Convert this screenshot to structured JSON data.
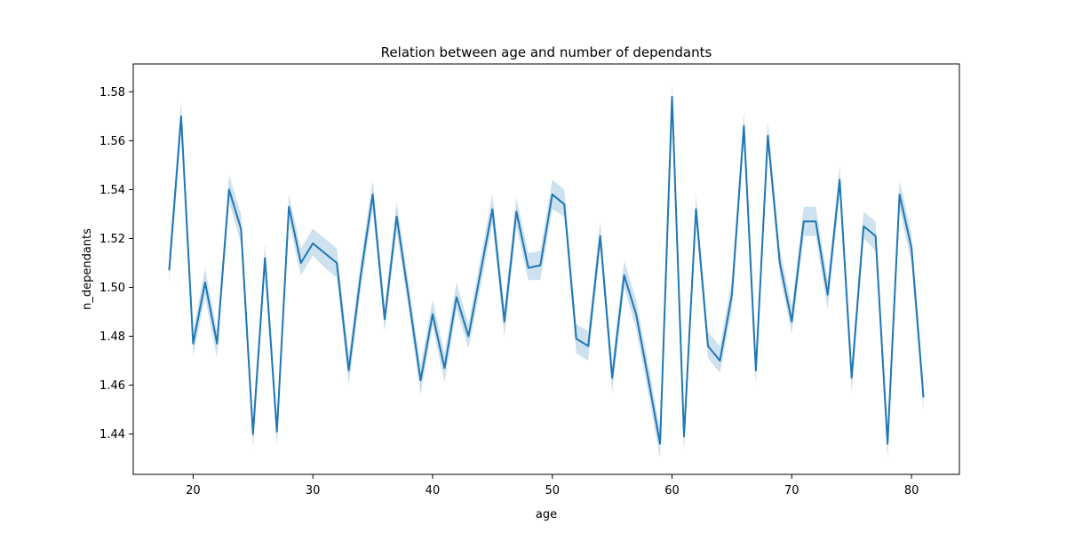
{
  "chart_data": {
    "type": "line",
    "title": "Relation between age and number of dependants",
    "xlabel": "age",
    "ylabel": "n_dependants",
    "xlim": [
      15,
      84
    ],
    "ylim": [
      1.4235,
      1.5914
    ],
    "xticks": [
      20,
      30,
      40,
      50,
      60,
      70,
      80
    ],
    "yticks": [
      1.44,
      1.46,
      1.48,
      1.5,
      1.52,
      1.54,
      1.56,
      1.58
    ],
    "ytick_decimals": 2,
    "grid": false,
    "colors": {
      "line": "#1f77b4",
      "band": "#1f77b4"
    },
    "series": [
      {
        "x": [
          18,
          19,
          20,
          21,
          22,
          23,
          24,
          25,
          26,
          27,
          28,
          29,
          30,
          31,
          32,
          33,
          34,
          35,
          36,
          37,
          38,
          39,
          40,
          41,
          42,
          43,
          44,
          45,
          46,
          47,
          48,
          49,
          50,
          51,
          52,
          53,
          54,
          55,
          56,
          57,
          58,
          59,
          60,
          61,
          62,
          63,
          64,
          65,
          66,
          67,
          68,
          69,
          70,
          71,
          72,
          73,
          74,
          75,
          76,
          77,
          78,
          79,
          80,
          81
        ],
        "values": [
          1.507,
          1.57,
          1.477,
          1.502,
          1.477,
          1.54,
          1.524,
          1.44,
          1.512,
          1.441,
          1.533,
          1.51,
          1.518,
          1.514,
          1.51,
          1.466,
          1.505,
          1.538,
          1.487,
          1.529,
          1.496,
          1.462,
          1.489,
          1.467,
          1.496,
          1.48,
          1.506,
          1.532,
          1.486,
          1.531,
          1.508,
          1.509,
          1.538,
          1.534,
          1.479,
          1.476,
          1.521,
          1.463,
          1.505,
          1.489,
          1.463,
          1.436,
          1.578,
          1.439,
          1.532,
          1.476,
          1.47,
          1.497,
          1.566,
          1.466,
          1.562,
          1.51,
          1.486,
          1.527,
          1.527,
          1.497,
          1.544,
          1.463,
          1.525,
          1.521,
          1.436,
          1.538,
          1.516,
          1.455
        ],
        "ci_lower": [
          1.501,
          1.564,
          1.472,
          1.496,
          1.471,
          1.535,
          1.518,
          1.434,
          1.506,
          1.435,
          1.527,
          1.505,
          1.513,
          1.508,
          1.504,
          1.46,
          1.499,
          1.532,
          1.482,
          1.523,
          1.491,
          1.456,
          1.484,
          1.461,
          1.491,
          1.475,
          1.5,
          1.526,
          1.48,
          1.525,
          1.503,
          1.503,
          1.532,
          1.529,
          1.473,
          1.47,
          1.516,
          1.457,
          1.5,
          1.483,
          1.457,
          1.43,
          1.572,
          1.433,
          1.527,
          1.471,
          1.465,
          1.491,
          1.56,
          1.46,
          1.557,
          1.505,
          1.481,
          1.521,
          1.521,
          1.491,
          1.538,
          1.457,
          1.52,
          1.515,
          1.43,
          1.532,
          1.51,
          1.449
        ],
        "ci_upper": [
          1.513,
          1.576,
          1.482,
          1.508,
          1.482,
          1.546,
          1.53,
          1.446,
          1.518,
          1.447,
          1.538,
          1.516,
          1.524,
          1.52,
          1.516,
          1.472,
          1.511,
          1.544,
          1.492,
          1.535,
          1.502,
          1.468,
          1.495,
          1.473,
          1.502,
          1.485,
          1.512,
          1.538,
          1.492,
          1.537,
          1.514,
          1.515,
          1.544,
          1.54,
          1.485,
          1.482,
          1.527,
          1.469,
          1.511,
          1.495,
          1.469,
          1.442,
          1.584,
          1.445,
          1.538,
          1.482,
          1.476,
          1.503,
          1.572,
          1.472,
          1.568,
          1.516,
          1.492,
          1.533,
          1.533,
          1.503,
          1.55,
          1.469,
          1.531,
          1.527,
          1.442,
          1.544,
          1.522,
          1.461
        ]
      }
    ]
  }
}
